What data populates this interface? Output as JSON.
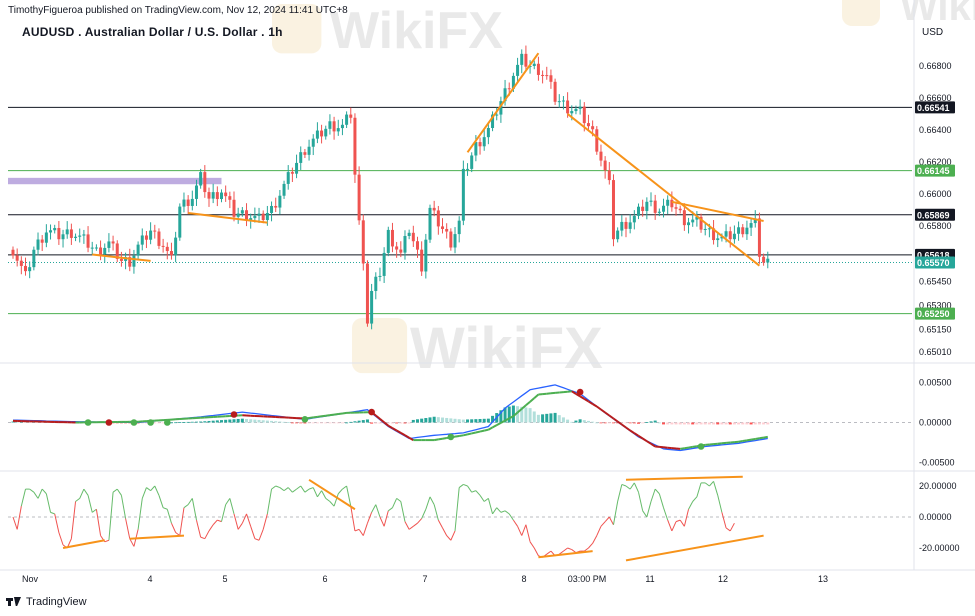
{
  "header": {
    "published": "TimothyFigueroa published on TradingView.com, Nov 12, 2024 11:41 UTC+8",
    "title": "AUDUSD . Australian Dollar / U.S. Dollar . 1h",
    "currency": "USD"
  },
  "footer": {
    "brand": "TradingView"
  },
  "watermark": "WikiFX",
  "colors": {
    "bull": "#26a69a",
    "bear": "#ef5350",
    "trendline": "#f7931a",
    "support_green": "#4caf50",
    "zone": "#b39ddb",
    "macd": "#2962ff",
    "signal": "#b71c1c",
    "signal_up": "#4caf50",
    "osc_up": "#66bb6a",
    "osc_down": "#ef5350"
  },
  "chart_data": [
    {
      "type": "candlestick",
      "title": "AUDUSD . Australian Dollar / U.S. Dollar . 1h",
      "ylabel": "USD",
      "ylim": [
        0.6496,
        0.6695
      ],
      "y_ticks": [
        0.668,
        0.666,
        0.664,
        0.662,
        0.66,
        0.658,
        0.6545,
        0.653,
        0.6515,
        0.6501
      ],
      "y_tick_labels": [
        "0.66800",
        "0.66600",
        "0.66400",
        "0.66200",
        "0.66000",
        "0.65800",
        "0.65450",
        "0.65300",
        "0.65150",
        "0.65010"
      ],
      "x_ticks": [
        "Nov",
        "4",
        "5",
        "6",
        "7",
        "8",
        "03:00 PM",
        "11",
        "12",
        "13"
      ],
      "close_path": [
        [
          0,
          0.6565
        ],
        [
          3,
          0.6548
        ],
        [
          5,
          0.6565
        ],
        [
          8,
          0.6577
        ],
        [
          11,
          0.6574
        ],
        [
          14,
          0.6576
        ],
        [
          17,
          0.6571
        ],
        [
          20,
          0.6564
        ],
        [
          23,
          0.6569
        ],
        [
          26,
          0.6558
        ],
        [
          28,
          0.6558
        ],
        [
          30,
          0.6567
        ],
        [
          33,
          0.6577
        ],
        [
          36,
          0.6568
        ],
        [
          38,
          0.6558
        ],
        [
          40,
          0.6592
        ],
        [
          43,
          0.6598
        ],
        [
          45,
          0.661
        ],
        [
          47,
          0.6597
        ],
        [
          50,
          0.6602
        ],
        [
          53,
          0.6588
        ],
        [
          56,
          0.6587
        ],
        [
          59,
          0.6584
        ],
        [
          62,
          0.659
        ],
        [
          64,
          0.66
        ],
        [
          67,
          0.6615
        ],
        [
          70,
          0.6628
        ],
        [
          73,
          0.6636
        ],
        [
          76,
          0.6643
        ],
        [
          79,
          0.6642
        ],
        [
          81,
          0.665
        ],
        [
          82,
          0.6612
        ],
        [
          83,
          0.6581
        ],
        [
          84,
          0.656
        ],
        [
          85,
          0.652
        ],
        [
          86,
          0.6538
        ],
        [
          88,
          0.6551
        ],
        [
          90,
          0.6575
        ],
        [
          93,
          0.6562
        ],
        [
          95,
          0.6578
        ],
        [
          98,
          0.6555
        ],
        [
          100,
          0.659
        ],
        [
          103,
          0.6578
        ],
        [
          105,
          0.657
        ],
        [
          107,
          0.6582
        ],
        [
          108,
          0.6612
        ],
        [
          111,
          0.663
        ],
        [
          114,
          0.664
        ],
        [
          117,
          0.6658
        ],
        [
          120,
          0.6675
        ],
        [
          122,
          0.6684
        ],
        [
          124,
          0.668
        ],
        [
          126,
          0.6678
        ],
        [
          128,
          0.6673
        ],
        [
          130,
          0.666
        ],
        [
          133,
          0.6654
        ],
        [
          136,
          0.6651
        ],
        [
          139,
          0.6638
        ],
        [
          141,
          0.6622
        ],
        [
          143,
          0.6605
        ],
        [
          144,
          0.6574
        ],
        [
          146,
          0.658
        ],
        [
          149,
          0.6585
        ],
        [
          152,
          0.6595
        ],
        [
          155,
          0.659
        ],
        [
          158,
          0.6594
        ],
        [
          161,
          0.6584
        ],
        [
          164,
          0.6582
        ],
        [
          167,
          0.6576
        ],
        [
          170,
          0.6572
        ],
        [
          173,
          0.6575
        ],
        [
          176,
          0.658
        ],
        [
          178,
          0.6581
        ],
        [
          179,
          0.6563
        ],
        [
          180,
          0.6557
        ]
      ],
      "horizontal_levels": [
        {
          "price": 0.66541,
          "label": "0.66541",
          "color": "#131722"
        },
        {
          "price": 0.66145,
          "label": "0.66145",
          "color": "#4caf50"
        },
        {
          "price": 0.65869,
          "label": "0.65869",
          "color": "#131722"
        },
        {
          "price": 0.65618,
          "label": "0.65618",
          "color": "#131722"
        },
        {
          "price": 0.6557,
          "label": "0.65570",
          "color": "#26a69a"
        },
        {
          "price": 0.6525,
          "label": "0.65250",
          "color": "#4caf50"
        }
      ],
      "zone": {
        "price_from": 0.661,
        "price_to": 0.6606,
        "bar_from": 0,
        "bar_to": 50
      },
      "trendlines": [
        [
          [
            19,
            0.6562
          ],
          [
            33,
            0.6558
          ]
        ],
        [
          [
            42,
            0.6588
          ],
          [
            61,
            0.6582
          ]
        ],
        [
          [
            109,
            0.6626
          ],
          [
            126,
            0.6688
          ]
        ],
        [
          [
            133,
            0.665
          ],
          [
            179,
            0.6555
          ]
        ],
        [
          [
            158,
            0.6595
          ],
          [
            180,
            0.6583
          ]
        ]
      ]
    },
    {
      "type": "line",
      "name": "MACD",
      "ylim": [
        -0.0063,
        0.0065
      ],
      "y_ticks": [
        0.005,
        0.0,
        -0.005
      ],
      "y_tick_labels": [
        "0.00500",
        "0.00000",
        "-0.00500"
      ],
      "macd_path": [
        [
          0,
          0.0003
        ],
        [
          15,
          0.0001
        ],
        [
          30,
          0.0
        ],
        [
          45,
          0.0007
        ],
        [
          55,
          0.0013
        ],
        [
          70,
          0.0004
        ],
        [
          80,
          0.0012
        ],
        [
          85,
          0.0016
        ],
        [
          90,
          -0.0005
        ],
        [
          95,
          -0.002
        ],
        [
          101,
          -0.0016
        ],
        [
          108,
          -0.0013
        ],
        [
          114,
          -0.0005
        ],
        [
          118,
          0.0018
        ],
        [
          124,
          0.0041
        ],
        [
          130,
          0.0047
        ],
        [
          136,
          0.0036
        ],
        [
          142,
          0.0012
        ],
        [
          150,
          -0.0018
        ],
        [
          156,
          -0.0033
        ],
        [
          160,
          -0.0035
        ],
        [
          166,
          -0.003
        ],
        [
          174,
          -0.0026
        ],
        [
          181,
          -0.002
        ]
      ],
      "signal_path": [
        [
          0,
          0.0002
        ],
        [
          15,
          0.0
        ],
        [
          30,
          0.0001
        ],
        [
          45,
          0.0006
        ],
        [
          55,
          0.0009
        ],
        [
          70,
          0.0005
        ],
        [
          80,
          0.0012
        ],
        [
          86,
          0.0013
        ],
        [
          90,
          -0.0004
        ],
        [
          96,
          -0.0022
        ],
        [
          101,
          -0.0022
        ],
        [
          108,
          -0.0016
        ],
        [
          114,
          -0.0009
        ],
        [
          120,
          0.0008
        ],
        [
          126,
          0.0035
        ],
        [
          134,
          0.0039
        ],
        [
          140,
          0.002
        ],
        [
          148,
          -0.001
        ],
        [
          154,
          -0.003
        ],
        [
          160,
          -0.0033
        ],
        [
          166,
          -0.0028
        ],
        [
          174,
          -0.0024
        ],
        [
          181,
          -0.0018
        ]
      ],
      "signal_markers": [
        [
          18,
          0.0,
          "up"
        ],
        [
          23,
          0.0,
          "down"
        ],
        [
          29,
          0.0,
          "up"
        ],
        [
          33,
          0.0,
          "up"
        ],
        [
          37,
          0.0,
          "up"
        ],
        [
          53,
          0.001,
          "down"
        ],
        [
          70,
          0.0004,
          "up"
        ],
        [
          86,
          0.0013,
          "down"
        ],
        [
          105,
          -0.0018,
          "up"
        ],
        [
          136,
          0.0038,
          "down"
        ],
        [
          165,
          -0.003,
          "up"
        ]
      ]
    },
    {
      "type": "line",
      "name": "Oscillator",
      "ylim": [
        -28,
        30
      ],
      "y_ticks": [
        20,
        0,
        -20
      ],
      "y_tick_labels": [
        "20.00000",
        "0.00000",
        "-20.00000"
      ],
      "values": [
        0,
        -8,
        7,
        18,
        18,
        16,
        12,
        18,
        15,
        3,
        2,
        -10,
        -18,
        -20,
        -14,
        10,
        12,
        18,
        14,
        3,
        5,
        -12,
        -16,
        -15,
        16,
        18,
        14,
        -1,
        -14,
        -19,
        -8,
        12,
        19,
        17,
        20,
        14,
        6,
        5,
        -4,
        -10,
        -12,
        6,
        8,
        12,
        -2,
        -13,
        -14,
        -9,
        -5,
        -2,
        -3,
        8,
        12,
        2,
        -8,
        -4,
        2,
        -6,
        -14,
        -15,
        -8,
        2,
        18,
        20,
        19,
        17,
        19,
        16,
        18,
        20,
        16,
        18,
        19,
        13,
        17,
        12,
        10,
        7,
        15,
        18,
        20,
        7,
        -9,
        -8,
        -12,
        -4,
        3,
        8,
        0,
        -6,
        4,
        6,
        12,
        10,
        -3,
        -8,
        -6,
        -4,
        -1,
        5,
        13,
        8,
        -2,
        -7,
        -12,
        -15,
        -9,
        19,
        21,
        20,
        16,
        17,
        14,
        10,
        12,
        2,
        6,
        3,
        4,
        2,
        -2,
        -6,
        -12,
        -5,
        -16,
        -20,
        -25,
        -26,
        -24,
        -22,
        -25,
        -24,
        -22,
        -20,
        -21,
        -23,
        -22,
        -22,
        -20,
        -17,
        -12,
        -6,
        -3,
        0,
        -5,
        10,
        21,
        20,
        18,
        22,
        16,
        4,
        0,
        10,
        18,
        15,
        6,
        -2,
        -9,
        -3,
        -2,
        -6,
        5,
        10,
        13,
        22,
        22,
        20,
        23,
        14,
        3,
        -7,
        -9,
        -4
      ],
      "trendlines": [
        [
          [
            12,
            -20
          ],
          [
            22,
            -15
          ]
        ],
        [
          [
            28,
            -14
          ],
          [
            41,
            -12
          ]
        ],
        [
          [
            71,
            24
          ],
          [
            82,
            5
          ]
        ],
        [
          [
            126,
            -26
          ],
          [
            139,
            -22
          ]
        ],
        [
          [
            147,
            24
          ],
          [
            175,
            26
          ]
        ],
        [
          [
            147,
            -28
          ],
          [
            180,
            -12
          ]
        ]
      ]
    }
  ]
}
